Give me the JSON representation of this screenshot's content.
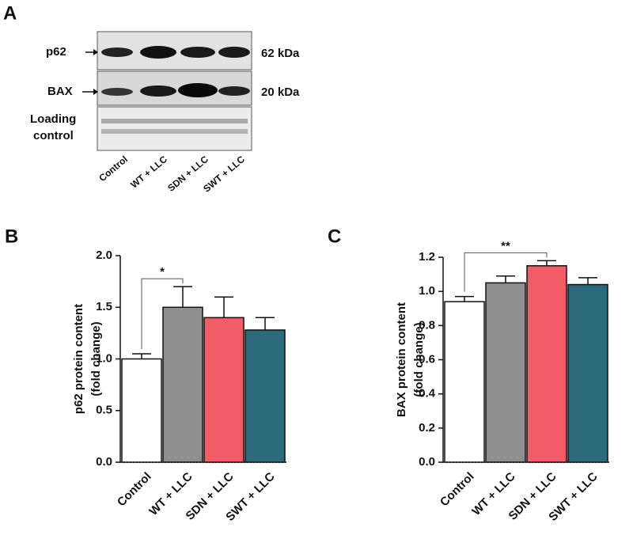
{
  "panel_labels": [
    "A",
    "B",
    "C"
  ],
  "blot": {
    "rows": [
      "p62",
      "BAX"
    ],
    "sizes": [
      "62 kDa",
      "20 kDa"
    ],
    "loading": [
      "Loading",
      "control"
    ],
    "lanes": [
      "Control",
      "WT + LLC",
      "SDN + LLC",
      "SWT + LLC"
    ]
  },
  "chart_data": [
    {
      "type": "bar",
      "ylabel": [
        "p62 protein content",
        "(fold change)"
      ],
      "categories": [
        "Control",
        "WT + LLC",
        "SDN + LLC",
        "SWT + LLC"
      ],
      "values": [
        1.0,
        1.5,
        1.4,
        1.28
      ],
      "errors": [
        0.05,
        0.2,
        0.2,
        0.12
      ],
      "colors": [
        "#ffffff",
        "#8f8f8f",
        "#f25c66",
        "#2b6a7a"
      ],
      "ylim": [
        0,
        2
      ],
      "yticks": [
        {
          "value": 0,
          "label": "0.0"
        },
        {
          "value": 0.5,
          "label": "0.5"
        },
        {
          "value": 1,
          "label": "1.0"
        },
        {
          "value": 1.5,
          "label": "1.5"
        },
        {
          "value": 2,
          "label": "2.0"
        }
      ],
      "significance": "*"
    },
    {
      "type": "bar",
      "ylabel": [
        "BAX protein content",
        "(fold change)"
      ],
      "categories": [
        "Control",
        "WT + LLC",
        "SDN + LLC",
        "SWT + LLC"
      ],
      "values": [
        0.94,
        1.05,
        1.15,
        1.04
      ],
      "errors": [
        0.03,
        0.04,
        0.03,
        0.04
      ],
      "colors": [
        "#ffffff",
        "#8f8f8f",
        "#f25c66",
        "#2b6a7a"
      ],
      "ylim": [
        0,
        1.2
      ],
      "yticks": [
        {
          "value": 0,
          "label": "0.0"
        },
        {
          "value": 0.2,
          "label": "0.2"
        },
        {
          "value": 0.4,
          "label": "0.4"
        },
        {
          "value": 0.6,
          "label": "0.6"
        },
        {
          "value": 0.8,
          "label": "0.8"
        },
        {
          "value": 1,
          "label": "1.0"
        },
        {
          "value": 1.2,
          "label": "1.2"
        }
      ],
      "significance": "**"
    }
  ]
}
